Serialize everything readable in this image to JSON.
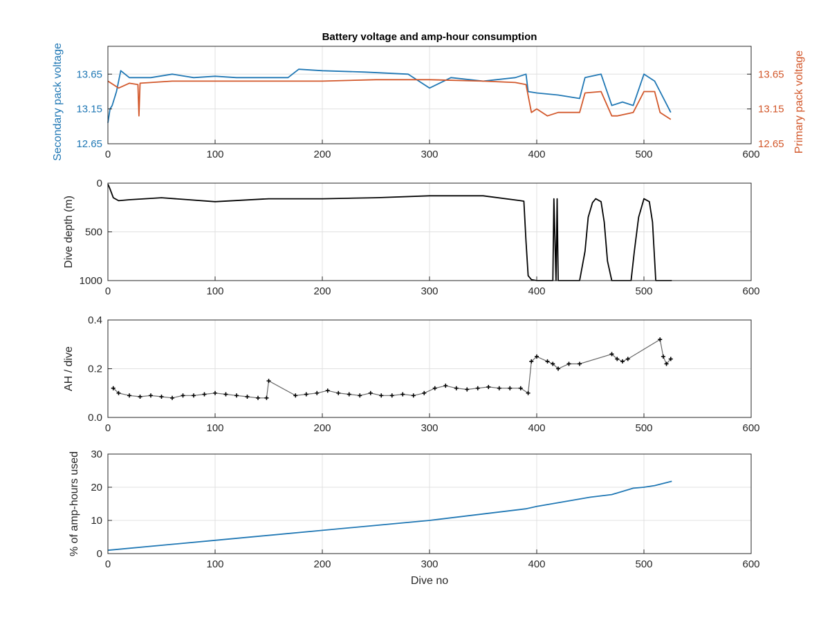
{
  "figure": {
    "title": "Battery voltage and amp-hour consumption"
  },
  "colors": {
    "secondary": "#1f77b4",
    "primary": "#d2572a",
    "black": "#000000",
    "grid": "#e0e0e0",
    "axis": "#262626"
  },
  "chart_data": [
    {
      "type": "line",
      "title": "Battery voltage and amp-hour consumption",
      "xlabel": "",
      "ylabel": "Secondary pack voltage",
      "y2label": "Primary pack voltage",
      "xlim": [
        0,
        600
      ],
      "ylim": [
        12.65,
        14.05
      ],
      "y2lim": [
        12.65,
        14.05
      ],
      "xticks": [
        0,
        100,
        200,
        300,
        400,
        500,
        600
      ],
      "yticks": [
        12.65,
        13.15,
        13.65
      ],
      "y2ticks": [
        12.65,
        13.15,
        13.65
      ],
      "grid": true,
      "series": [
        {
          "axis": "left",
          "color": "#1f77b4",
          "x": [
            0,
            2,
            4,
            8,
            12,
            20,
            40,
            60,
            80,
            100,
            120,
            150,
            168,
            178,
            200,
            240,
            280,
            300,
            320,
            350,
            380,
            390,
            392,
            400,
            420,
            440,
            445,
            460,
            470,
            480,
            490,
            500,
            510,
            515,
            525
          ],
          "y": [
            12.95,
            13.15,
            13.2,
            13.4,
            13.7,
            13.6,
            13.6,
            13.65,
            13.6,
            13.62,
            13.6,
            13.6,
            13.6,
            13.72,
            13.7,
            13.68,
            13.65,
            13.45,
            13.6,
            13.55,
            13.6,
            13.65,
            13.4,
            13.38,
            13.35,
            13.3,
            13.6,
            13.65,
            13.2,
            13.25,
            13.2,
            13.65,
            13.55,
            13.4,
            13.1
          ]
        },
        {
          "axis": "right",
          "color": "#d2572a",
          "x": [
            0,
            10,
            20,
            28,
            29,
            30,
            60,
            100,
            150,
            200,
            250,
            300,
            350,
            380,
            390,
            395,
            400,
            410,
            420,
            430,
            440,
            445,
            460,
            470,
            475,
            490,
            500,
            510,
            515,
            520,
            525
          ],
          "y": [
            13.55,
            13.45,
            13.52,
            13.5,
            13.05,
            13.52,
            13.55,
            13.55,
            13.55,
            13.55,
            13.57,
            13.57,
            13.55,
            13.53,
            13.5,
            13.1,
            13.15,
            13.05,
            13.1,
            13.1,
            13.1,
            13.38,
            13.4,
            13.05,
            13.05,
            13.1,
            13.4,
            13.4,
            13.1,
            13.05,
            13.0
          ]
        }
      ]
    },
    {
      "type": "line",
      "xlabel": "",
      "ylabel": "Dive depth (m)",
      "xlim": [
        0,
        600
      ],
      "ylim": [
        0,
        1000
      ],
      "y_reversed": true,
      "xticks": [
        0,
        100,
        200,
        300,
        400,
        500,
        600
      ],
      "yticks": [
        0,
        500,
        1000
      ],
      "grid": true,
      "series": [
        {
          "color": "#000000",
          "x": [
            0,
            2,
            5,
            10,
            20,
            50,
            100,
            150,
            200,
            250,
            300,
            350,
            385,
            388,
            390,
            392,
            395,
            400,
            415,
            416,
            418,
            419,
            420,
            440,
            445,
            448,
            452,
            455,
            460,
            463,
            466,
            470,
            488,
            491,
            495,
            500,
            505,
            508,
            511,
            515,
            526
          ],
          "y": [
            10,
            60,
            150,
            180,
            170,
            150,
            190,
            160,
            160,
            150,
            130,
            130,
            180,
            185,
            600,
            950,
            990,
            1000,
            1000,
            160,
            1000,
            160,
            1000,
            1000,
            700,
            350,
            200,
            160,
            190,
            400,
            800,
            1000,
            1000,
            700,
            350,
            160,
            190,
            400,
            1000,
            1000,
            1000
          ]
        }
      ]
    },
    {
      "type": "scatter",
      "xlabel": "",
      "ylabel": "AH / dive",
      "xlim": [
        0,
        600
      ],
      "ylim": [
        0,
        0.4
      ],
      "xticks": [
        0,
        100,
        200,
        300,
        400,
        500,
        600
      ],
      "yticks": [
        0,
        0.2,
        0.4
      ],
      "grid": true,
      "series": [
        {
          "color": "#000000",
          "x": [
            5,
            10,
            20,
            30,
            40,
            50,
            60,
            70,
            80,
            90,
            100,
            110,
            120,
            130,
            140,
            148,
            150,
            175,
            185,
            195,
            205,
            215,
            225,
            235,
            245,
            255,
            265,
            275,
            285,
            295,
            305,
            315,
            325,
            335,
            345,
            355,
            365,
            375,
            385,
            392,
            395,
            400,
            410,
            415,
            420,
            430,
            440,
            470,
            475,
            480,
            485,
            515,
            518,
            521,
            525
          ],
          "y": [
            0.12,
            0.1,
            0.09,
            0.085,
            0.09,
            0.085,
            0.08,
            0.09,
            0.09,
            0.095,
            0.1,
            0.095,
            0.09,
            0.085,
            0.08,
            0.08,
            0.15,
            0.09,
            0.095,
            0.1,
            0.11,
            0.1,
            0.095,
            0.09,
            0.1,
            0.09,
            0.09,
            0.095,
            0.09,
            0.1,
            0.12,
            0.13,
            0.12,
            0.115,
            0.12,
            0.125,
            0.12,
            0.12,
            0.12,
            0.1,
            0.23,
            0.25,
            0.23,
            0.22,
            0.2,
            0.22,
            0.22,
            0.26,
            0.24,
            0.23,
            0.24,
            0.32,
            0.25,
            0.22,
            0.24
          ]
        }
      ]
    },
    {
      "type": "line",
      "xlabel": "Dive no",
      "ylabel": "% of amp-hours used",
      "xlim": [
        0,
        600
      ],
      "ylim": [
        0,
        30
      ],
      "xticks": [
        0,
        100,
        200,
        300,
        400,
        500,
        600
      ],
      "yticks": [
        0,
        10,
        20,
        30
      ],
      "grid": true,
      "series": [
        {
          "color": "#1f77b4",
          "x": [
            0,
            100,
            200,
            300,
            390,
            400,
            450,
            470,
            490,
            500,
            510,
            526
          ],
          "y": [
            1,
            4,
            7,
            10,
            13.5,
            14.2,
            17,
            17.8,
            19.7,
            20,
            20.5,
            21.8
          ]
        }
      ]
    }
  ]
}
